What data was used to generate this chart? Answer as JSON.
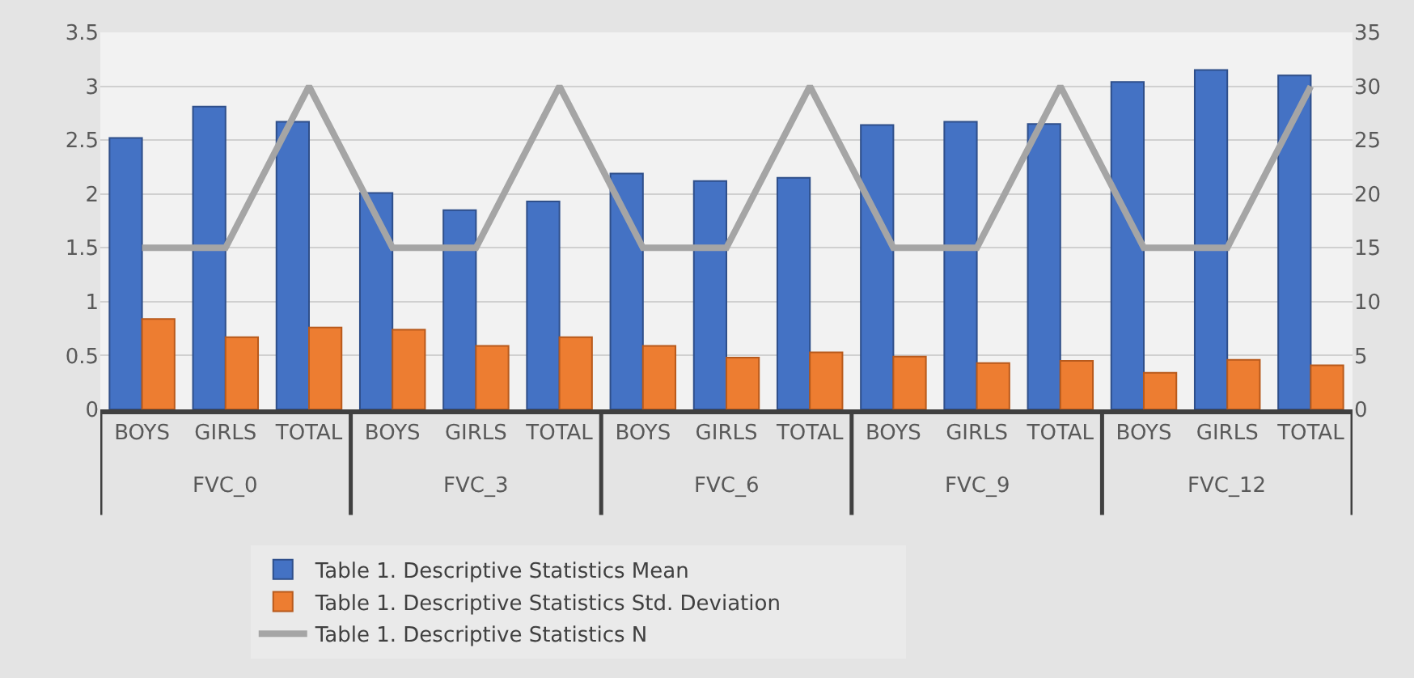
{
  "chart_data": {
    "type": "bar",
    "categories": [
      "BOYS",
      "GIRLS",
      "TOTAL",
      "BOYS",
      "GIRLS",
      "TOTAL",
      "BOYS",
      "GIRLS",
      "TOTAL",
      "BOYS",
      "GIRLS",
      "TOTAL",
      "BOYS",
      "GIRLS",
      "TOTAL"
    ],
    "series": [
      {
        "name": "Table 1. Descriptive Statistics Mean",
        "color": "#4472c4",
        "values": [
          2.52,
          2.81,
          2.67,
          2.01,
          1.85,
          1.93,
          2.19,
          2.12,
          2.15,
          2.64,
          2.67,
          2.65,
          3.04,
          3.15,
          3.1
        ]
      },
      {
        "name": "Table 1. Descriptive Statistics Std. Deviation",
        "color": "#ed7d31",
        "values": [
          0.84,
          0.67,
          0.76,
          0.74,
          0.59,
          0.67,
          0.59,
          0.48,
          0.53,
          0.49,
          0.43,
          0.45,
          0.34,
          0.46,
          0.41
        ]
      },
      {
        "name": "Table 1. Descriptive Statistics N",
        "color": "#a5a5a5",
        "type": "line",
        "axis": "y2",
        "values": [
          15,
          15,
          30,
          15,
          15,
          30,
          15,
          15,
          30,
          15,
          15,
          30,
          15,
          15,
          30
        ]
      }
    ],
    "annotations": [
      "FVC_0",
      "FVC_3",
      "FVC_6",
      "FVC_9",
      "FVC_12"
    ],
    "ylim": [
      0,
      3.5
    ],
    "yticks": [
      0,
      0.5,
      1,
      1.5,
      2,
      2.5,
      3,
      3.5
    ],
    "y2lim": [
      0,
      35
    ],
    "y2ticks": [
      0,
      5,
      10,
      15,
      20,
      25,
      30,
      35
    ],
    "grid": "y",
    "legend": "bottom",
    "marker": "none"
  }
}
